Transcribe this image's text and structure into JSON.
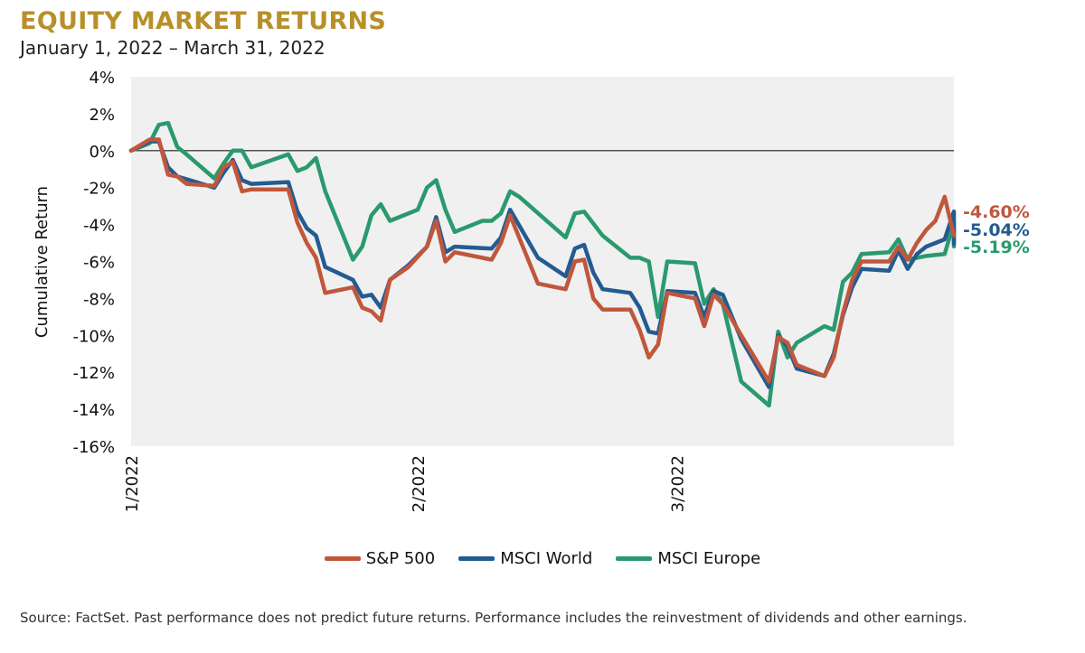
{
  "header": {
    "title": "EQUITY MARKET RETURNS",
    "subtitle": "January 1, 2022 – March 31, 2022"
  },
  "source_note": "Source: FactSet. Past performance does not predict future returns. Performance includes the reinvestment of dividends and other earnings.",
  "colors": {
    "title": "#b8902a",
    "sp500": "#c0573c",
    "msci_world": "#245b91",
    "msci_europe": "#2a9a6e",
    "plot_bg": "#f0f0f0",
    "zero_line": "#555555"
  },
  "chart_data": {
    "type": "line",
    "title": "EQUITY MARKET RETURNS",
    "subtitle": "January 1, 2022 – March 31, 2022",
    "xlabel": "",
    "ylabel": "Cumulative Return",
    "ylim": [
      -16,
      4
    ],
    "yticks": [
      4,
      2,
      0,
      -2,
      -4,
      -6,
      -8,
      -10,
      -12,
      -14,
      -16
    ],
    "ytick_labels": [
      "4%",
      "2%",
      "0%",
      "-2%",
      "-4%",
      "-6%",
      "-8%",
      "-10%",
      "-12%",
      "-14%",
      "-16%"
    ],
    "x_range": [
      "2022-01-01",
      "2022-03-31"
    ],
    "xticks": [
      {
        "date": "2022-01-01",
        "label": "1/2022"
      },
      {
        "date": "2022-02-01",
        "label": "2/2022"
      },
      {
        "date": "2022-03-01",
        "label": "3/2022"
      }
    ],
    "grid": false,
    "series": [
      {
        "name": "S&P 500",
        "color": "#c0573c",
        "end_label": "-4.60%",
        "points": [
          [
            "2022-01-01",
            0.0
          ],
          [
            "2022-01-03",
            0.6
          ],
          [
            "2022-01-04",
            0.6
          ],
          [
            "2022-01-05",
            -1.3
          ],
          [
            "2022-01-06",
            -1.4
          ],
          [
            "2022-01-07",
            -1.8
          ],
          [
            "2022-01-10",
            -1.9
          ],
          [
            "2022-01-11",
            -0.9
          ],
          [
            "2022-01-12",
            -0.6
          ],
          [
            "2022-01-13",
            -2.2
          ],
          [
            "2022-01-14",
            -2.1
          ],
          [
            "2022-01-18",
            -2.1
          ],
          [
            "2022-01-19",
            -3.9
          ],
          [
            "2022-01-20",
            -5.0
          ],
          [
            "2022-01-21",
            -5.8
          ],
          [
            "2022-01-22",
            -7.7
          ],
          [
            "2022-01-25",
            -7.4
          ],
          [
            "2022-01-26",
            -8.5
          ],
          [
            "2022-01-27",
            -8.7
          ],
          [
            "2022-01-28",
            -9.2
          ],
          [
            "2022-01-29",
            -7.0
          ],
          [
            "2022-01-31",
            -6.3
          ],
          [
            "2022-02-02",
            -5.2
          ],
          [
            "2022-02-03",
            -3.8
          ],
          [
            "2022-02-04",
            -6.0
          ],
          [
            "2022-02-05",
            -5.5
          ],
          [
            "2022-02-09",
            -5.9
          ],
          [
            "2022-02-10",
            -5.0
          ],
          [
            "2022-02-11",
            -3.5
          ],
          [
            "2022-02-14",
            -7.2
          ],
          [
            "2022-02-17",
            -7.5
          ],
          [
            "2022-02-18",
            -6.0
          ],
          [
            "2022-02-19",
            -5.9
          ],
          [
            "2022-02-20",
            -8.0
          ],
          [
            "2022-02-21",
            -8.6
          ],
          [
            "2022-02-24",
            -8.6
          ],
          [
            "2022-02-25",
            -9.7
          ],
          [
            "2022-02-26",
            -11.2
          ],
          [
            "2022-02-27",
            -10.5
          ],
          [
            "2022-02-28",
            -7.7
          ],
          [
            "2022-03-02",
            -7.9
          ],
          [
            "2022-03-03",
            -8.0
          ],
          [
            "2022-03-04",
            -9.5
          ],
          [
            "2022-03-05",
            -7.8
          ],
          [
            "2022-03-06",
            -8.3
          ],
          [
            "2022-03-08",
            -10.0
          ],
          [
            "2022-03-11",
            -12.5
          ],
          [
            "2022-03-12",
            -10.1
          ],
          [
            "2022-03-13",
            -10.4
          ],
          [
            "2022-03-14",
            -11.6
          ],
          [
            "2022-03-17",
            -12.2
          ],
          [
            "2022-03-18",
            -11.2
          ],
          [
            "2022-03-19",
            -8.8
          ],
          [
            "2022-03-20",
            -7.0
          ],
          [
            "2022-03-21",
            -6.0
          ],
          [
            "2022-03-23",
            -6.0
          ],
          [
            "2022-03-24",
            -6.0
          ],
          [
            "2022-03-25",
            -5.2
          ],
          [
            "2022-03-26",
            -5.9
          ],
          [
            "2022-03-27",
            -5.0
          ],
          [
            "2022-03-28",
            -4.3
          ],
          [
            "2022-03-29",
            -3.8
          ],
          [
            "2022-03-30",
            -2.5
          ],
          [
            "2022-03-31",
            -4.6
          ]
        ]
      },
      {
        "name": "MSCI World",
        "color": "#245b91",
        "end_label": "-5.04%",
        "points": [
          [
            "2022-01-01",
            0.0
          ],
          [
            "2022-01-03",
            0.5
          ],
          [
            "2022-01-04",
            0.5
          ],
          [
            "2022-01-05",
            -0.9
          ],
          [
            "2022-01-06",
            -1.4
          ],
          [
            "2022-01-10",
            -2.0
          ],
          [
            "2022-01-11",
            -1.2
          ],
          [
            "2022-01-12",
            -0.5
          ],
          [
            "2022-01-13",
            -1.6
          ],
          [
            "2022-01-14",
            -1.8
          ],
          [
            "2022-01-18",
            -1.7
          ],
          [
            "2022-01-19",
            -3.3
          ],
          [
            "2022-01-20",
            -4.2
          ],
          [
            "2022-01-21",
            -4.6
          ],
          [
            "2022-01-22",
            -6.3
          ],
          [
            "2022-01-25",
            -7.0
          ],
          [
            "2022-01-26",
            -7.9
          ],
          [
            "2022-01-27",
            -7.8
          ],
          [
            "2022-01-28",
            -8.5
          ],
          [
            "2022-01-29",
            -7.0
          ],
          [
            "2022-01-31",
            -6.2
          ],
          [
            "2022-02-02",
            -5.2
          ],
          [
            "2022-02-03",
            -3.6
          ],
          [
            "2022-02-04",
            -5.5
          ],
          [
            "2022-02-05",
            -5.2
          ],
          [
            "2022-02-09",
            -5.3
          ],
          [
            "2022-02-10",
            -4.7
          ],
          [
            "2022-02-11",
            -3.2
          ],
          [
            "2022-02-14",
            -5.8
          ],
          [
            "2022-02-17",
            -6.8
          ],
          [
            "2022-02-18",
            -5.3
          ],
          [
            "2022-02-19",
            -5.1
          ],
          [
            "2022-02-20",
            -6.6
          ],
          [
            "2022-02-21",
            -7.5
          ],
          [
            "2022-02-24",
            -7.7
          ],
          [
            "2022-02-25",
            -8.5
          ],
          [
            "2022-02-26",
            -9.8
          ],
          [
            "2022-02-27",
            -9.9
          ],
          [
            "2022-02-28",
            -7.6
          ],
          [
            "2022-03-03",
            -7.7
          ],
          [
            "2022-03-04",
            -9.0
          ],
          [
            "2022-03-05",
            -7.6
          ],
          [
            "2022-03-06",
            -7.8
          ],
          [
            "2022-03-08",
            -10.2
          ],
          [
            "2022-03-11",
            -12.8
          ],
          [
            "2022-03-12",
            -10.0
          ],
          [
            "2022-03-13",
            -10.6
          ],
          [
            "2022-03-14",
            -11.8
          ],
          [
            "2022-03-17",
            -12.2
          ],
          [
            "2022-03-18",
            -11.0
          ],
          [
            "2022-03-19",
            -8.9
          ],
          [
            "2022-03-20",
            -7.4
          ],
          [
            "2022-03-21",
            -6.4
          ],
          [
            "2022-03-24",
            -6.5
          ],
          [
            "2022-03-25",
            -5.4
          ],
          [
            "2022-03-26",
            -6.4
          ],
          [
            "2022-03-27",
            -5.6
          ],
          [
            "2022-03-28",
            -5.2
          ],
          [
            "2022-03-30",
            -4.8
          ],
          [
            "2022-03-31",
            -3.3
          ],
          [
            "2022-03-31",
            -5.04
          ]
        ]
      },
      {
        "name": "MSCI Europe",
        "color": "#2a9a6e",
        "end_label": "-5.19%",
        "points": [
          [
            "2022-01-01",
            0.0
          ],
          [
            "2022-01-03",
            0.4
          ],
          [
            "2022-01-04",
            1.4
          ],
          [
            "2022-01-05",
            1.5
          ],
          [
            "2022-01-06",
            0.2
          ],
          [
            "2022-01-07",
            -0.2
          ],
          [
            "2022-01-10",
            -1.5
          ],
          [
            "2022-01-11",
            -0.7
          ],
          [
            "2022-01-12",
            0.0
          ],
          [
            "2022-01-13",
            0.0
          ],
          [
            "2022-01-14",
            -0.9
          ],
          [
            "2022-01-18",
            -0.2
          ],
          [
            "2022-01-19",
            -1.1
          ],
          [
            "2022-01-20",
            -0.9
          ],
          [
            "2022-01-21",
            -0.4
          ],
          [
            "2022-01-22",
            -2.2
          ],
          [
            "2022-01-25",
            -5.9
          ],
          [
            "2022-01-26",
            -5.2
          ],
          [
            "2022-01-27",
            -3.5
          ],
          [
            "2022-01-28",
            -2.9
          ],
          [
            "2022-01-29",
            -3.8
          ],
          [
            "2022-02-01",
            -3.2
          ],
          [
            "2022-02-02",
            -2.0
          ],
          [
            "2022-02-03",
            -1.6
          ],
          [
            "2022-02-04",
            -3.2
          ],
          [
            "2022-02-05",
            -4.4
          ],
          [
            "2022-02-08",
            -3.8
          ],
          [
            "2022-02-09",
            -3.8
          ],
          [
            "2022-02-10",
            -3.4
          ],
          [
            "2022-02-11",
            -2.2
          ],
          [
            "2022-02-12",
            -2.5
          ],
          [
            "2022-02-17",
            -4.7
          ],
          [
            "2022-02-18",
            -3.4
          ],
          [
            "2022-02-19",
            -3.3
          ],
          [
            "2022-02-21",
            -4.6
          ],
          [
            "2022-02-24",
            -5.8
          ],
          [
            "2022-02-25",
            -5.8
          ],
          [
            "2022-02-26",
            -6.0
          ],
          [
            "2022-02-27",
            -9.0
          ],
          [
            "2022-02-28",
            -6.0
          ],
          [
            "2022-03-03",
            -6.1
          ],
          [
            "2022-03-04",
            -8.3
          ],
          [
            "2022-03-05",
            -7.5
          ],
          [
            "2022-03-06",
            -8.3
          ],
          [
            "2022-03-08",
            -12.5
          ],
          [
            "2022-03-11",
            -13.8
          ],
          [
            "2022-03-12",
            -9.8
          ],
          [
            "2022-03-13",
            -11.2
          ],
          [
            "2022-03-14",
            -10.4
          ],
          [
            "2022-03-17",
            -9.5
          ],
          [
            "2022-03-18",
            -9.7
          ],
          [
            "2022-03-19",
            -7.1
          ],
          [
            "2022-03-20",
            -6.6
          ],
          [
            "2022-03-21",
            -5.6
          ],
          [
            "2022-03-24",
            -5.5
          ],
          [
            "2022-03-25",
            -4.8
          ],
          [
            "2022-03-26",
            -5.9
          ],
          [
            "2022-03-27",
            -5.8
          ],
          [
            "2022-03-28",
            -5.7
          ],
          [
            "2022-03-30",
            -5.6
          ],
          [
            "2022-03-31",
            -3.9
          ],
          [
            "2022-03-31",
            -5.19
          ]
        ]
      }
    ],
    "legend": {
      "position": "bottom-center",
      "entries": [
        "S&P 500",
        "MSCI World",
        "MSCI Europe"
      ]
    }
  }
}
